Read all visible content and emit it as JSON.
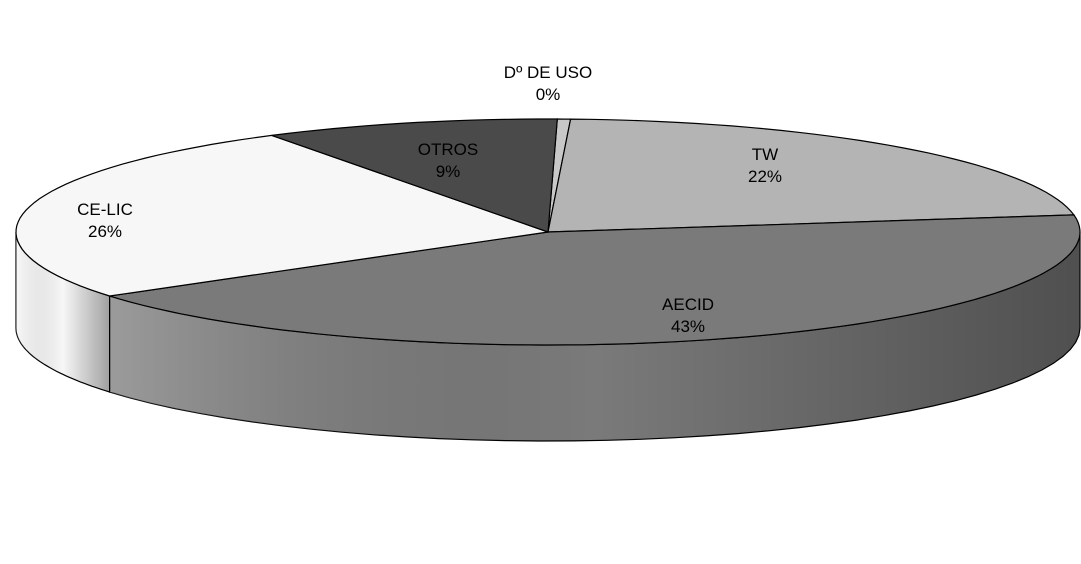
{
  "chart_data": {
    "type": "pie",
    "style": "3d-exploded-none",
    "title": "",
    "slices": [
      {
        "label": "Dº DE USO",
        "percent_label": "0%",
        "value": 0.4,
        "color": "#c8c8c8"
      },
      {
        "label": "TW",
        "percent_label": "22%",
        "value": 22,
        "color": "#b4b4b4"
      },
      {
        "label": "AECID",
        "percent_label": "43%",
        "value": 43,
        "color": "#7a7a7a"
      },
      {
        "label": "CE-LIC",
        "percent_label": "26%",
        "value": 26,
        "color": "#f7f7f7"
      },
      {
        "label": "OTROS",
        "percent_label": "9%",
        "value": 9,
        "color": "#4a4a4a"
      }
    ],
    "start_angle_deg": 1,
    "direction": "clockwise",
    "legend": "none"
  }
}
